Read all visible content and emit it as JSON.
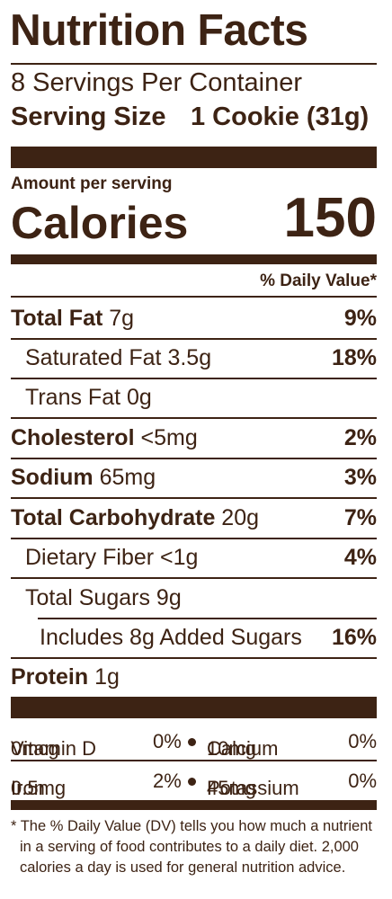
{
  "title": "Nutrition Facts",
  "servings_per_container": "8 Servings Per Container",
  "serving_size": {
    "label": "Serving Size",
    "value": "1 Cookie (31g)"
  },
  "amount_per_serving": "Amount per serving",
  "calories": {
    "label": "Calories",
    "value": "150"
  },
  "daily_value_header": "% Daily Value*",
  "nutrients": [
    {
      "name": "Total Fat",
      "amount": "7g",
      "dv": "9%"
    },
    {
      "name": "Saturated Fat",
      "amount": "3.5g",
      "dv": "18%"
    },
    {
      "name": "Trans Fat",
      "amount": "0g",
      "dv": ""
    },
    {
      "name": "Cholesterol",
      "amount": "<5mg",
      "dv": "2%"
    },
    {
      "name": "Sodium",
      "amount": "65mg",
      "dv": "3%"
    },
    {
      "name": "Total Carbohydrate",
      "amount": "20g",
      "dv": "7%"
    },
    {
      "name": "Dietary Fiber",
      "amount": "<1g",
      "dv": "4%"
    },
    {
      "name": "Total Sugars",
      "amount": "9g",
      "dv": ""
    },
    {
      "name": "Includes 8g Added Sugars",
      "amount": "",
      "dv": "16%"
    },
    {
      "name": "Protein",
      "amount": "1g",
      "dv": ""
    }
  ],
  "vitamins": [
    {
      "name": "Vitamin D",
      "amount": "0mcg",
      "dv": "0%"
    },
    {
      "name": "Calcium",
      "amount": "10mg",
      "dv": "0%"
    },
    {
      "name": "Iron",
      "amount": "0.5mg",
      "dv": "2%"
    },
    {
      "name": "Potassium",
      "amount": "45mg",
      "dv": "0%"
    }
  ],
  "footnote": [
    "* The % Daily Value (DV) tells you how much a nutrient",
    "in a serving of food contributes to a daily diet. 2,000",
    "calories a day is used for general nutrition advice."
  ],
  "colors": {
    "ink": "#3d2314",
    "background": "#ffffff"
  }
}
